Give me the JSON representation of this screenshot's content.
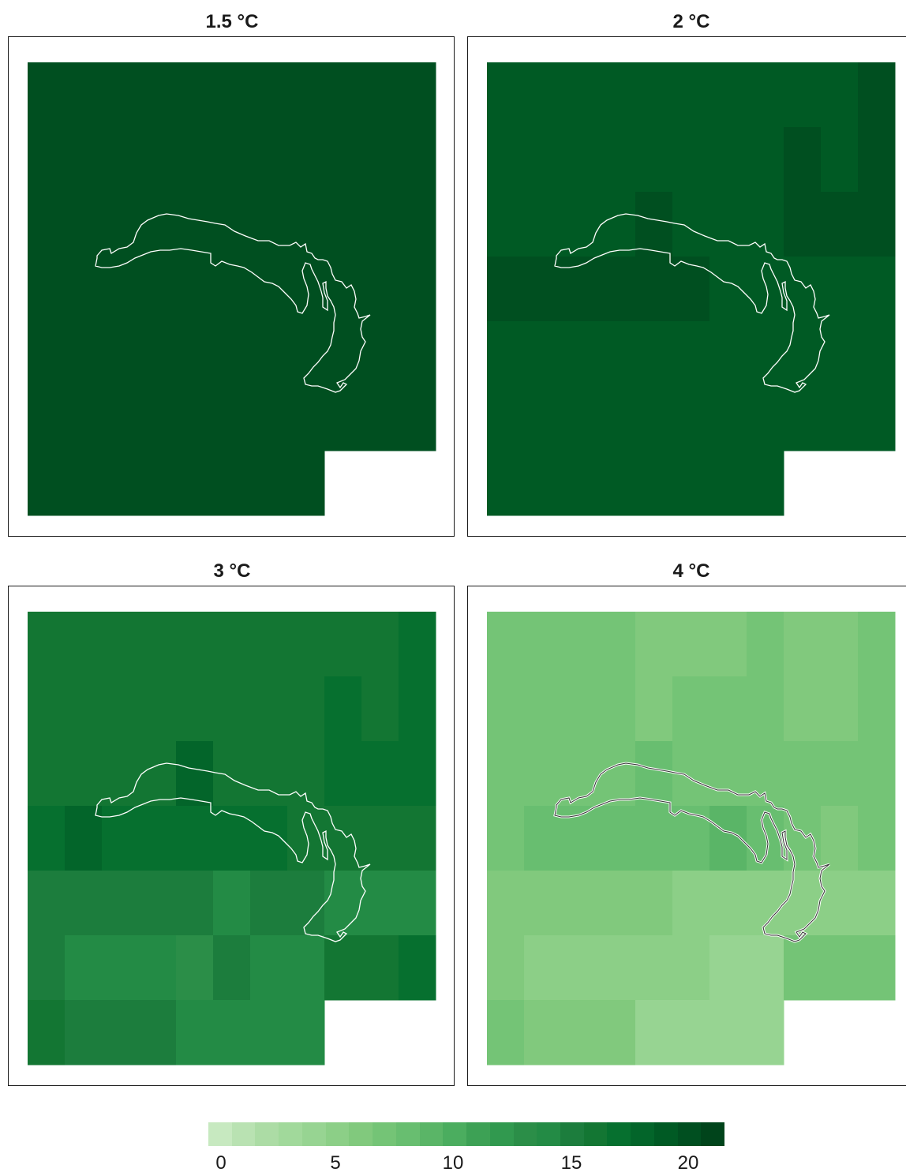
{
  "panels": [
    {
      "title": "1.5 °C",
      "grid": [
        [
          20,
          20,
          20,
          20,
          20,
          20,
          20,
          20,
          20,
          20,
          20
        ],
        [
          20,
          20,
          20,
          20,
          20,
          20,
          20,
          20,
          20,
          20,
          20
        ],
        [
          20,
          20,
          20,
          20,
          20,
          20,
          20,
          20,
          20,
          20,
          20
        ],
        [
          20,
          20,
          20,
          20,
          20,
          20,
          20,
          20,
          20,
          20,
          20
        ],
        [
          20,
          20,
          20,
          20,
          20,
          20,
          20,
          20,
          20,
          20,
          20
        ],
        [
          20,
          20,
          20,
          20,
          20,
          20,
          20,
          20,
          20,
          20,
          20
        ],
        [
          20,
          20,
          20,
          20,
          20,
          20,
          20,
          20,
          null,
          null,
          null
        ]
      ],
      "outline_color": "#ffffff"
    },
    {
      "title": "2 °C",
      "grid": [
        [
          19,
          19,
          19,
          19,
          19,
          19,
          19,
          19,
          19,
          19,
          20
        ],
        [
          19,
          19,
          19,
          19,
          19,
          19,
          19,
          19,
          20,
          19,
          20
        ],
        [
          19,
          19,
          19,
          19,
          20,
          19,
          19,
          19,
          20,
          20,
          20
        ],
        [
          20,
          20,
          20,
          20,
          20,
          20,
          19,
          19,
          19,
          19,
          19
        ],
        [
          19,
          19,
          19,
          19,
          19,
          19,
          19,
          19,
          19,
          19,
          19
        ],
        [
          19,
          19,
          19,
          19,
          19,
          19,
          19,
          19,
          19,
          19,
          19
        ],
        [
          19,
          19,
          19,
          19,
          19,
          19,
          19,
          19,
          null,
          null,
          null
        ]
      ],
      "outline_color": "#ffffff"
    },
    {
      "title": "3 °C",
      "grid": [
        [
          16,
          16,
          16,
          16,
          16,
          16,
          16,
          16,
          16,
          16,
          17
        ],
        [
          16,
          16,
          16,
          16,
          16,
          16,
          16,
          16,
          17,
          16,
          17
        ],
        [
          16,
          16,
          16,
          16,
          18,
          16,
          16,
          16,
          17,
          17,
          17
        ],
        [
          17,
          18,
          17,
          17,
          17,
          17,
          17,
          16,
          16,
          16,
          16
        ],
        [
          15,
          15,
          15,
          15,
          15,
          14,
          15,
          15,
          14,
          14,
          14
        ],
        [
          15,
          14,
          14,
          14,
          13,
          15,
          14,
          14,
          16,
          16,
          17
        ],
        [
          16,
          15,
          15,
          15,
          14,
          14,
          14,
          14,
          null,
          null,
          null
        ]
      ],
      "outline_color": "#ffffff"
    },
    {
      "title": "4 °C",
      "grid": [
        [
          7,
          7,
          7,
          7,
          6,
          6,
          6,
          7,
          6,
          6,
          7
        ],
        [
          7,
          7,
          7,
          7,
          6,
          7,
          7,
          7,
          6,
          6,
          7
        ],
        [
          7,
          7,
          7,
          7,
          8,
          7,
          7,
          7,
          7,
          7,
          7
        ],
        [
          7,
          8,
          8,
          8,
          8,
          8,
          9,
          8,
          7,
          6,
          7
        ],
        [
          6,
          6,
          6,
          6,
          6,
          5,
          5,
          5,
          5,
          5,
          5
        ],
        [
          6,
          5,
          5,
          5,
          5,
          5,
          4,
          4,
          7,
          7,
          7
        ],
        [
          7,
          6,
          6,
          6,
          4,
          4,
          4,
          4,
          null,
          null,
          null
        ]
      ],
      "outline_color": "#333333"
    }
  ],
  "legend": {
    "colors": [
      "#c7e9c0",
      "#b9e2b2",
      "#acdca5",
      "#a1d99b",
      "#97d492",
      "#8ccf87",
      "#81c97d",
      "#74c476",
      "#68be70",
      "#5ab567",
      "#4bad5f",
      "#3da155",
      "#31994f",
      "#2b8e48",
      "#238b45",
      "#1c7d3d",
      "#137633",
      "#06702f",
      "#03652a",
      "#005a24",
      "#004f20",
      "#00441b"
    ],
    "ticks": [
      "0",
      "5",
      "10",
      "15",
      "20"
    ],
    "tick_values": [
      0,
      5,
      10,
      15,
      20
    ]
  }
}
